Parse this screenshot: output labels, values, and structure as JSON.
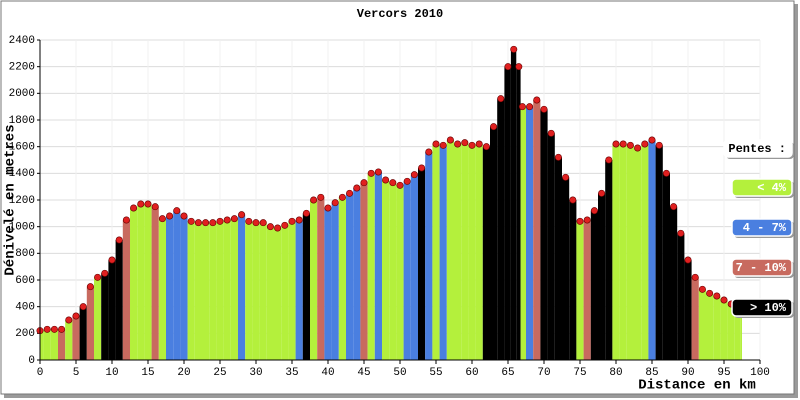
{
  "chart_data": {
    "type": "elevation-profile",
    "title": "Vercors 2010",
    "x_label": "Distance en km",
    "y_label": "Dénivelé en metres",
    "xlim": [
      0,
      100
    ],
    "xticks": [
      0,
      5,
      10,
      15,
      20,
      25,
      30,
      35,
      40,
      45,
      50,
      55,
      60,
      65,
      70,
      75,
      80,
      85,
      90,
      95,
      100
    ],
    "ylim": [
      0,
      2400
    ],
    "yticks": [
      0,
      200,
      400,
      600,
      800,
      1000,
      1200,
      1400,
      1600,
      1800,
      2000,
      2200,
      2400
    ],
    "grid": true,
    "legend": {
      "title": "Pentes :",
      "items": [
        {
          "label": "< 4%",
          "color": "#b4f03c"
        },
        {
          "label": "4 - 7%",
          "color": "#4a7fe0"
        },
        {
          "label": "7 - 10%",
          "color": "#c86a5f"
        },
        {
          "label": "> 10%",
          "color": "#000000"
        }
      ]
    },
    "series": [
      {
        "marker_color": "#e02020",
        "x": [
          0,
          1,
          2,
          3,
          4,
          5,
          6,
          7,
          8,
          9,
          10,
          11,
          12,
          13,
          14,
          15,
          16,
          17,
          18,
          19,
          20,
          21,
          22,
          23,
          24,
          25,
          26,
          27,
          28,
          29,
          30,
          31,
          32,
          33,
          34,
          35,
          36,
          37,
          38,
          39,
          40,
          41,
          42,
          43,
          44,
          45,
          46,
          47,
          48,
          49,
          50,
          51,
          52,
          53,
          54,
          55,
          56,
          57,
          58,
          59,
          60,
          61,
          62,
          63,
          64,
          65,
          65.8,
          66.5,
          67,
          68,
          69,
          70,
          71,
          72,
          73,
          74,
          75,
          76,
          77,
          78,
          79,
          80,
          81,
          82,
          83,
          84,
          85,
          86,
          87,
          88,
          89,
          90,
          91,
          92,
          93,
          94,
          95,
          96,
          97,
          97.5
        ],
        "values": [
          220,
          230,
          230,
          230,
          300,
          330,
          400,
          550,
          620,
          650,
          750,
          900,
          1050,
          1140,
          1170,
          1170,
          1150,
          1060,
          1080,
          1120,
          1080,
          1040,
          1030,
          1030,
          1030,
          1040,
          1050,
          1060,
          1090,
          1040,
          1030,
          1030,
          1000,
          990,
          1010,
          1040,
          1050,
          1100,
          1200,
          1220,
          1140,
          1180,
          1220,
          1250,
          1290,
          1330,
          1400,
          1410,
          1350,
          1330,
          1310,
          1340,
          1390,
          1440,
          1560,
          1620,
          1610,
          1650,
          1620,
          1630,
          1610,
          1620,
          1600,
          1750,
          1960,
          2200,
          2330,
          2200,
          1900,
          1900,
          1950,
          1880,
          1700,
          1520,
          1370,
          1200,
          1040,
          1050,
          1120,
          1250,
          1500,
          1620,
          1620,
          1610,
          1590,
          1620,
          1650,
          1610,
          1400,
          1150,
          950,
          750,
          620,
          530,
          500,
          480,
          450,
          420,
          410,
          400
        ],
        "colors": [
          "#b4f03c",
          "#b4f03c",
          "#b4f03c",
          "#c86a5f",
          "#b4f03c",
          "#c86a5f",
          "#000000",
          "#c86a5f",
          "#b4f03c",
          "#000000",
          "#000000",
          "#000000",
          "#c86a5f",
          "#b4f03c",
          "#b4f03c",
          "#b4f03c",
          "#c86a5f",
          "#b4f03c",
          "#4a7fe0",
          "#4a7fe0",
          "#4a7fe0",
          "#b4f03c",
          "#b4f03c",
          "#b4f03c",
          "#b4f03c",
          "#b4f03c",
          "#b4f03c",
          "#b4f03c",
          "#4a7fe0",
          "#b4f03c",
          "#b4f03c",
          "#b4f03c",
          "#b4f03c",
          "#b4f03c",
          "#b4f03c",
          "#b4f03c",
          "#4a7fe0",
          "#000000",
          "#b4f03c",
          "#c86a5f",
          "#4a7fe0",
          "#4a7fe0",
          "#b4f03c",
          "#4a7fe0",
          "#4a7fe0",
          "#c86a5f",
          "#b4f03c",
          "#4a7fe0",
          "#b4f03c",
          "#b4f03c",
          "#b4f03c",
          "#4a7fe0",
          "#4a7fe0",
          "#000000",
          "#4a7fe0",
          "#b4f03c",
          "#4a7fe0",
          "#b4f03c",
          "#b4f03c",
          "#b4f03c",
          "#b4f03c",
          "#b4f03c",
          "#000000",
          "#000000",
          "#000000",
          "#000000",
          "#000000",
          "#000000",
          "#b4f03c",
          "#4a7fe0",
          "#c86a5f",
          "#000000",
          "#000000",
          "#000000",
          "#000000",
          "#000000",
          "#b4f03c",
          "#c86a5f",
          "#000000",
          "#000000",
          "#000000",
          "#b4f03c",
          "#b4f03c",
          "#b4f03c",
          "#b4f03c",
          "#b4f03c",
          "#4a7fe0",
          "#000000",
          "#000000",
          "#000000",
          "#000000",
          "#000000",
          "#c86a5f",
          "#b4f03c",
          "#b4f03c",
          "#b4f03c",
          "#b4f03c",
          "#b4f03c",
          "#b4f03c",
          "#b4f03c"
        ]
      }
    ]
  }
}
